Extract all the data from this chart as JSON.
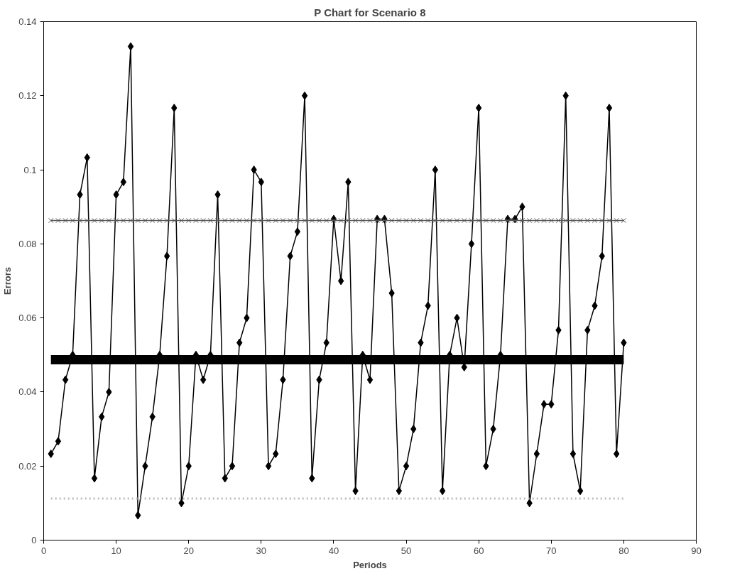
{
  "chart_data": {
    "type": "line",
    "title": "P Chart for Scenario 8",
    "xlabel": "Periods",
    "ylabel": "Errors",
    "x": [
      1,
      2,
      3,
      4,
      5,
      6,
      7,
      8,
      9,
      10,
      11,
      12,
      13,
      14,
      15,
      16,
      17,
      18,
      19,
      20,
      21,
      22,
      23,
      24,
      25,
      26,
      27,
      28,
      29,
      30,
      31,
      32,
      33,
      34,
      35,
      36,
      37,
      38,
      39,
      40,
      41,
      42,
      43,
      44,
      45,
      46,
      47,
      48,
      49,
      50,
      51,
      52,
      53,
      54,
      55,
      56,
      57,
      58,
      59,
      60,
      61,
      62,
      63,
      64,
      65,
      66,
      67,
      68,
      69,
      70,
      71,
      72,
      73,
      74,
      75,
      76,
      77,
      78,
      79,
      80
    ],
    "series": [
      {
        "color": "#000000",
        "marker": "diamond",
        "values": [
          0.0233,
          0.0267,
          0.0433,
          0.05,
          0.0933,
          0.1033,
          0.0167,
          0.0333,
          0.04,
          0.0933,
          0.0967,
          0.1333,
          0.0067,
          0.02,
          0.0333,
          0.05,
          0.0767,
          0.1167,
          0.01,
          0.02,
          0.05,
          0.0433,
          0.05,
          0.0933,
          0.0167,
          0.02,
          0.0533,
          0.06,
          0.1,
          0.0967,
          0.02,
          0.0233,
          0.0433,
          0.0767,
          0.0833,
          0.12,
          0.0167,
          0.0433,
          0.0533,
          0.0867,
          0.07,
          0.0967,
          0.0133,
          0.05,
          0.0433,
          0.0867,
          0.0867,
          0.0667,
          0.0133,
          0.02,
          0.03,
          0.0533,
          0.0633,
          0.1,
          0.0133,
          0.05,
          0.06,
          0.0467,
          0.08,
          0.1167,
          0.02,
          0.03,
          0.05,
          0.0867,
          0.0867,
          0.09,
          0.01,
          0.0233,
          0.0367,
          0.0367,
          0.0567,
          0.12,
          0.0233,
          0.0133,
          0.0567,
          0.0633,
          0.0767,
          0.1167,
          0.0233,
          0.0533
        ]
      },
      {
        "color": "#555555",
        "marker": "cross",
        "values": [
          0.0863,
          0.0863,
          0.0863,
          0.0863,
          0.0863,
          0.0863,
          0.0863,
          0.0863,
          0.0863,
          0.0863,
          0.0863,
          0.0863,
          0.0863,
          0.0863,
          0.0863,
          0.0863,
          0.0863,
          0.0863,
          0.0863,
          0.0863,
          0.0863,
          0.0863,
          0.0863,
          0.0863,
          0.0863,
          0.0863,
          0.0863,
          0.0863,
          0.0863,
          0.0863,
          0.0863,
          0.0863,
          0.0863,
          0.0863,
          0.0863,
          0.0863,
          0.0863,
          0.0863,
          0.0863,
          0.0863,
          0.0863,
          0.0863,
          0.0863,
          0.0863,
          0.0863,
          0.0863,
          0.0863,
          0.0863,
          0.0863,
          0.0863,
          0.0863,
          0.0863,
          0.0863,
          0.0863,
          0.0863,
          0.0863,
          0.0863,
          0.0863,
          0.0863,
          0.0863,
          0.0863,
          0.0863,
          0.0863,
          0.0863,
          0.0863,
          0.0863,
          0.0863,
          0.0863,
          0.0863,
          0.0863,
          0.0863,
          0.0863,
          0.0863,
          0.0863,
          0.0863,
          0.0863,
          0.0863,
          0.0863,
          0.0863,
          0.0863
        ]
      },
      {
        "color": "#000000",
        "marker": "none",
        "values": [
          0.0487,
          0.0487,
          0.0487,
          0.0487,
          0.0487,
          0.0487,
          0.0487,
          0.0487,
          0.0487,
          0.0487,
          0.0487,
          0.0487,
          0.0487,
          0.0487,
          0.0487,
          0.0487,
          0.0487,
          0.0487,
          0.0487,
          0.0487,
          0.0487,
          0.0487,
          0.0487,
          0.0487,
          0.0487,
          0.0487,
          0.0487,
          0.0487,
          0.0487,
          0.0487,
          0.0487,
          0.0487,
          0.0487,
          0.0487,
          0.0487,
          0.0487,
          0.0487,
          0.0487,
          0.0487,
          0.0487,
          0.0487,
          0.0487,
          0.0487,
          0.0487,
          0.0487,
          0.0487,
          0.0487,
          0.0487,
          0.0487,
          0.0487,
          0.0487,
          0.0487,
          0.0487,
          0.0487,
          0.0487,
          0.0487,
          0.0487,
          0.0487,
          0.0487,
          0.0487,
          0.0487,
          0.0487,
          0.0487,
          0.0487,
          0.0487,
          0.0487,
          0.0487,
          0.0487,
          0.0487,
          0.0487,
          0.0487,
          0.0487,
          0.0487,
          0.0487,
          0.0487,
          0.0487,
          0.0487,
          0.0487,
          0.0487,
          0.0487
        ]
      },
      {
        "color": "#bbbbbb",
        "marker": "none",
        "line_style": "dotted",
        "values": [
          0.0112,
          0.0112,
          0.0112,
          0.0112,
          0.0112,
          0.0112,
          0.0112,
          0.0112,
          0.0112,
          0.0112,
          0.0112,
          0.0112,
          0.0112,
          0.0112,
          0.0112,
          0.0112,
          0.0112,
          0.0112,
          0.0112,
          0.0112,
          0.0112,
          0.0112,
          0.0112,
          0.0112,
          0.0112,
          0.0112,
          0.0112,
          0.0112,
          0.0112,
          0.0112,
          0.0112,
          0.0112,
          0.0112,
          0.0112,
          0.0112,
          0.0112,
          0.0112,
          0.0112,
          0.0112,
          0.0112,
          0.0112,
          0.0112,
          0.0112,
          0.0112,
          0.0112,
          0.0112,
          0.0112,
          0.0112,
          0.0112,
          0.0112,
          0.0112,
          0.0112,
          0.0112,
          0.0112,
          0.0112,
          0.0112,
          0.0112,
          0.0112,
          0.0112,
          0.0112,
          0.0112,
          0.0112,
          0.0112,
          0.0112,
          0.0112,
          0.0112,
          0.0112,
          0.0112,
          0.0112,
          0.0112,
          0.0112,
          0.0112,
          0.0112,
          0.0112,
          0.0112,
          0.0112,
          0.0112,
          0.0112,
          0.0112,
          0.0112
        ]
      }
    ],
    "xlim": [
      0,
      90
    ],
    "xticks": [
      0,
      10,
      20,
      30,
      40,
      50,
      60,
      70,
      80,
      90
    ],
    "ylim": [
      0,
      0.14
    ],
    "yticks": [
      0,
      0.02,
      0.04,
      0.06,
      0.08,
      0.1,
      0.12,
      0.14
    ],
    "grid": false,
    "line_style": "solid"
  }
}
